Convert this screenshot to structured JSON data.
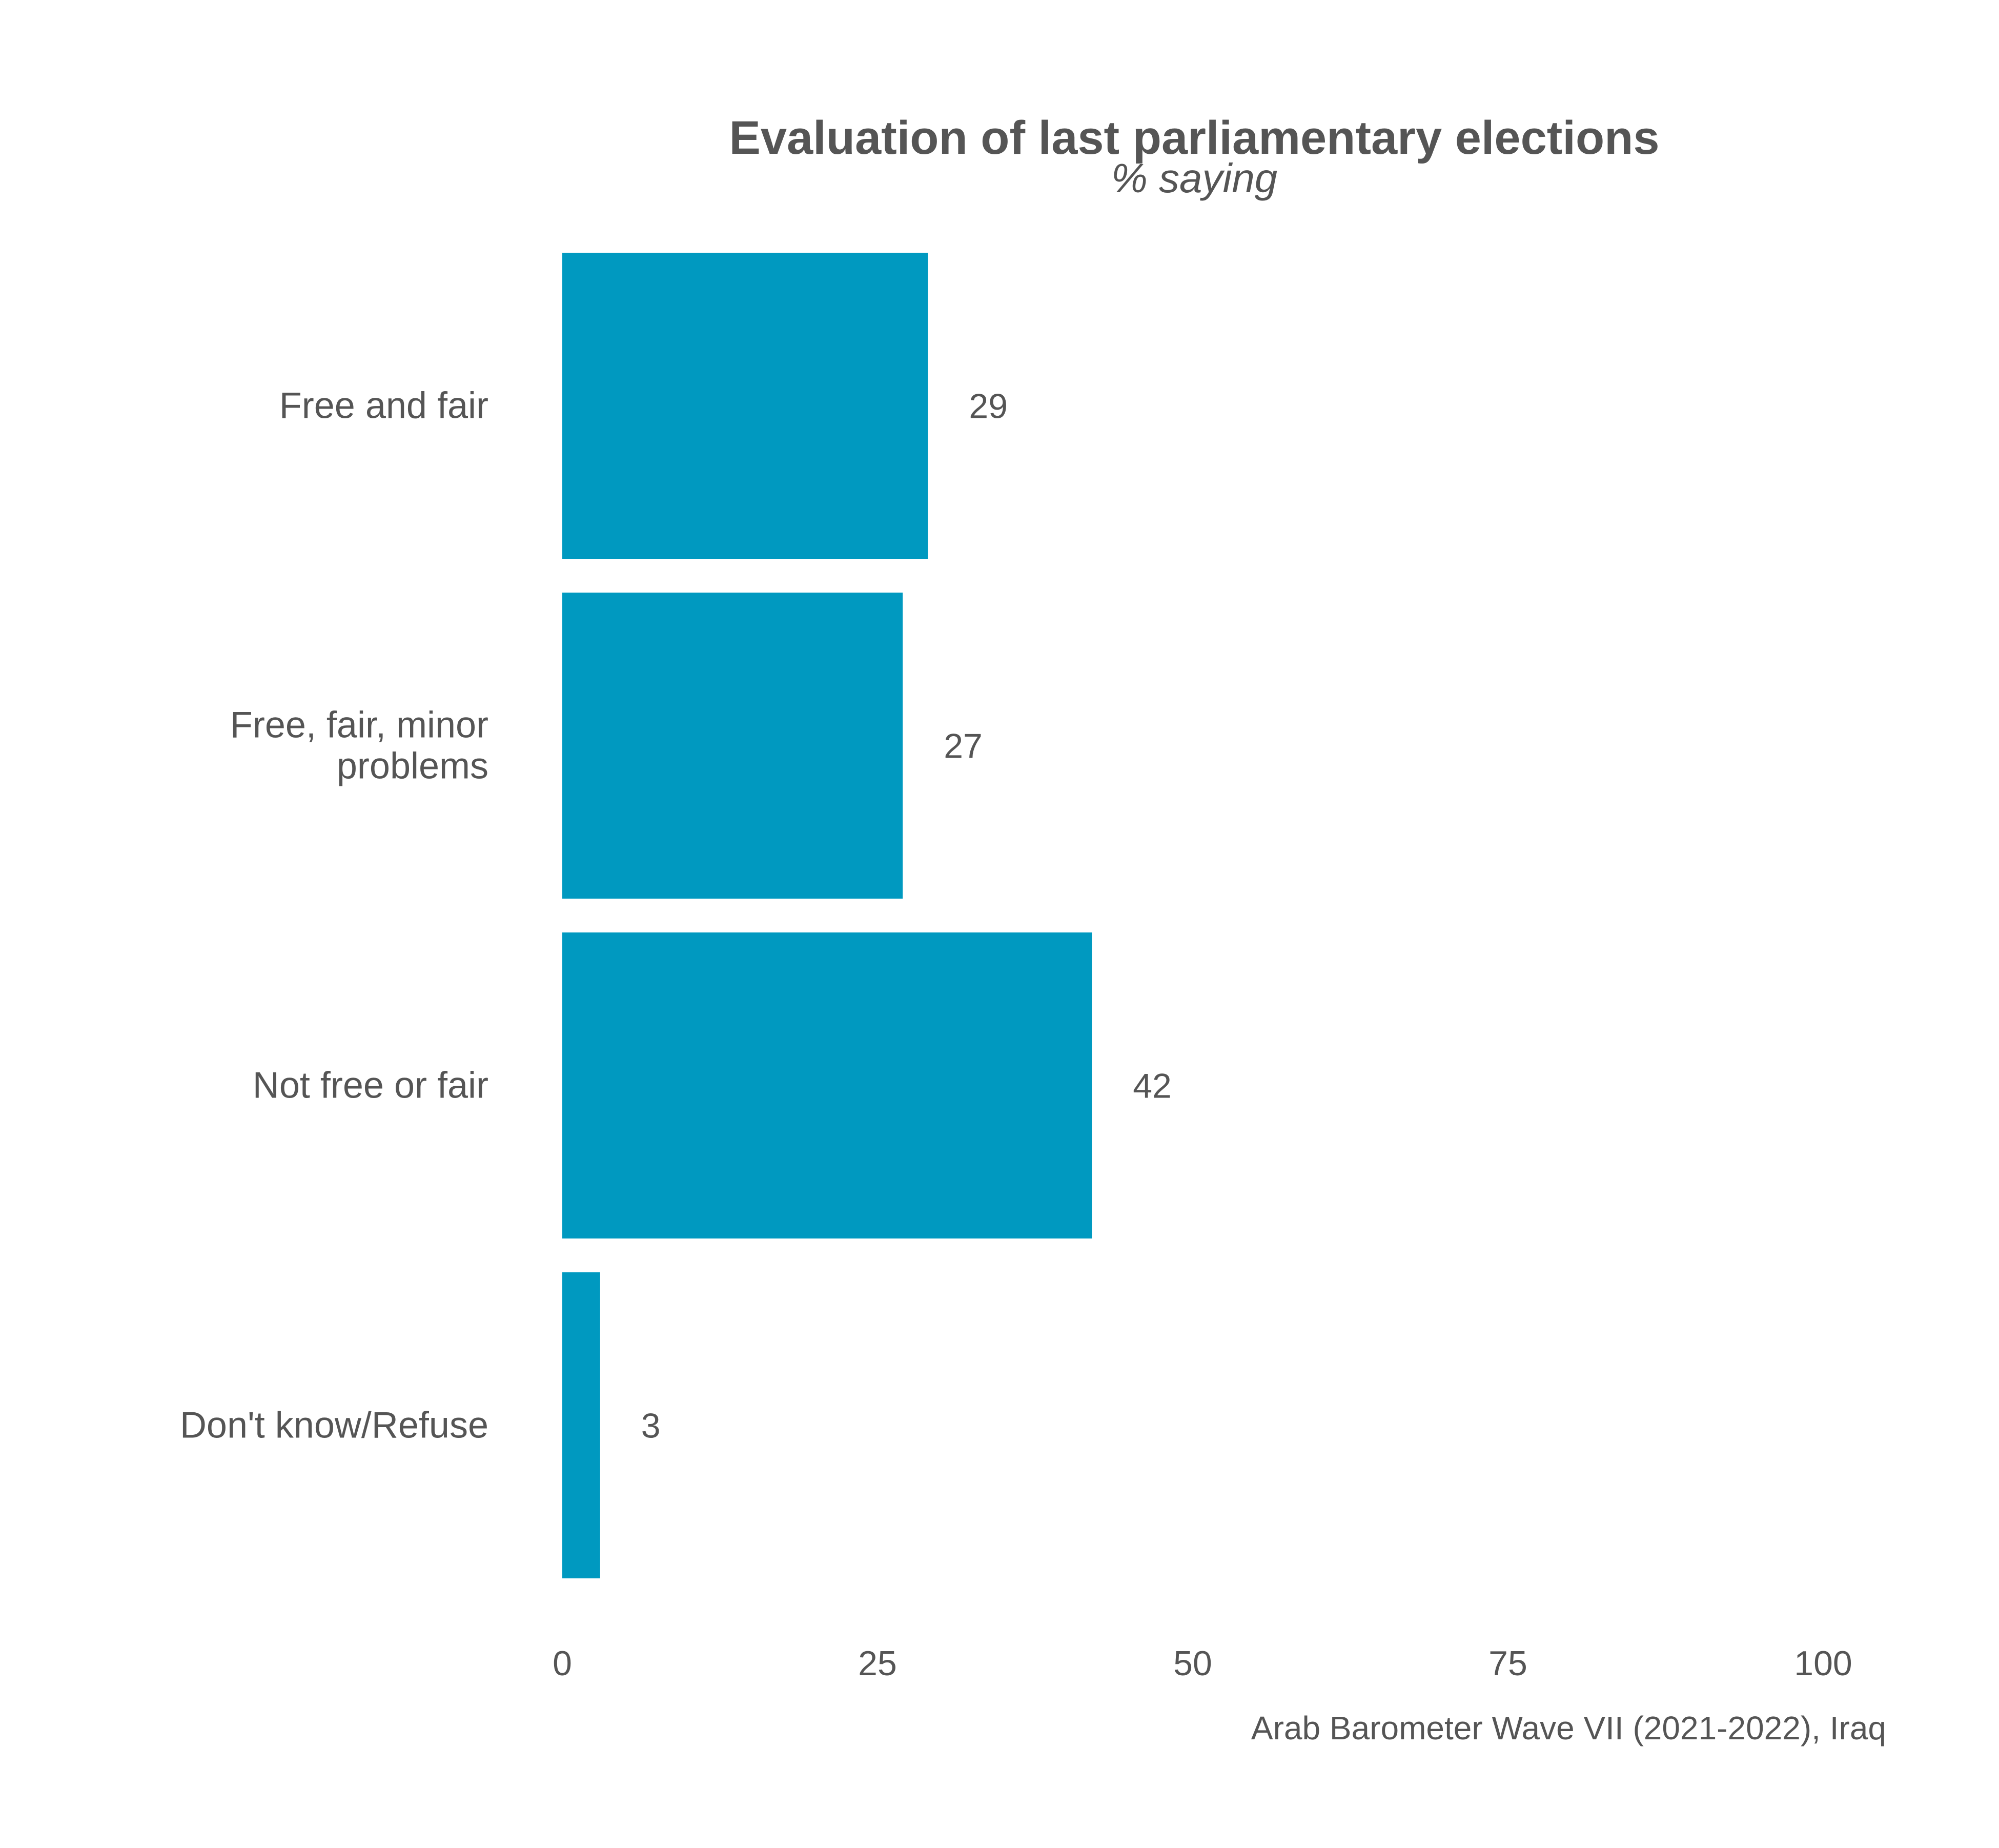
{
  "chart_data": {
    "type": "bar",
    "orientation": "horizontal",
    "title": "Evaluation of last parliamentary elections",
    "subtitle": "% saying",
    "categories": [
      [
        "Free and fair"
      ],
      [
        "Free, fair, minor",
        "problems"
      ],
      [
        "Not free or fair"
      ],
      [
        "Don't know/Refuse"
      ]
    ],
    "values": [
      29,
      27,
      42,
      3
    ],
    "data_labels": [
      "29",
      "27",
      "42",
      "3"
    ],
    "xlim": [
      0,
      100
    ],
    "x_ticks": [
      0,
      25,
      50,
      75,
      100
    ],
    "x_tick_labels": [
      "0",
      "25",
      "50",
      "75",
      "100"
    ],
    "xlabel": "",
    "ylabel": "",
    "grid": false,
    "legend": "none",
    "bar_color": "#0099c0",
    "caption": "Arab Barometer Wave VII (2021-2022), Iraq"
  }
}
